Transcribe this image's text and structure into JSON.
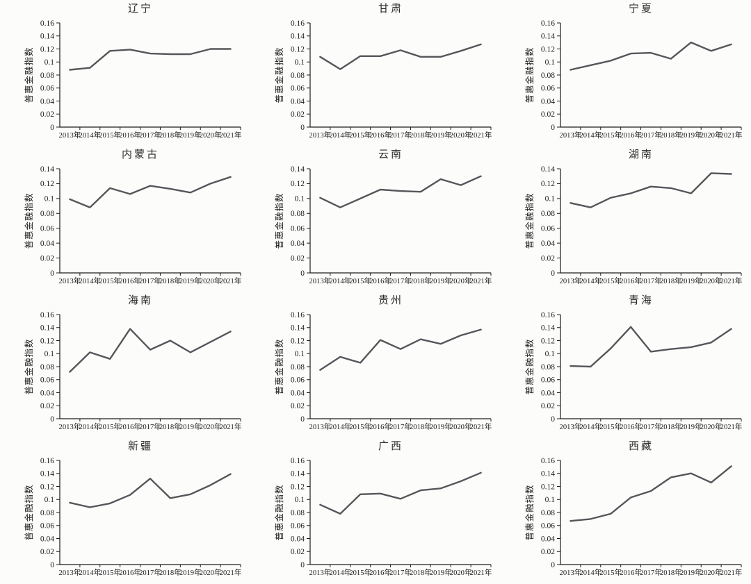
{
  "page": {
    "background": "#fcfcfb",
    "line_color": "#55565a",
    "axis_color": "#1c1c1c"
  },
  "chart_data": [
    {
      "type": "line",
      "title": "辽宁",
      "ylabel": "普惠金融指数",
      "xlabel": "",
      "categories": [
        "2013年",
        "2014年",
        "2015年",
        "2016年",
        "2017年",
        "2018年",
        "2019年",
        "2020年",
        "2021年"
      ],
      "values": [
        0.088,
        0.091,
        0.117,
        0.119,
        0.113,
        0.112,
        0.112,
        0.12,
        0.12
      ],
      "ylim": [
        0,
        0.16
      ],
      "ytick_step": 0.02,
      "yticks": [
        "0",
        "0.02",
        "0.04",
        "0.06",
        "0.08",
        "0.1",
        "0.12",
        "0.14",
        "0.16"
      ],
      "grid": false,
      "legend": null
    },
    {
      "type": "line",
      "title": "甘肃",
      "ylabel": "普惠金融指数",
      "xlabel": "",
      "categories": [
        "2013年",
        "2014年",
        "2015年",
        "2016年",
        "2017年",
        "2018年",
        "2019年",
        "2020年",
        "2021年"
      ],
      "values": [
        0.108,
        0.089,
        0.109,
        0.109,
        0.118,
        0.108,
        0.108,
        0.117,
        0.127
      ],
      "ylim": [
        0,
        0.16
      ],
      "ytick_step": 0.02,
      "yticks": [
        "0",
        "0.02",
        "0.04",
        "0.06",
        "0.08",
        "0.1",
        "0.12",
        "0.14",
        "0.16"
      ],
      "grid": false,
      "legend": null
    },
    {
      "type": "line",
      "title": "宁夏",
      "ylabel": "普惠金融指数",
      "xlabel": "",
      "categories": [
        "2013年",
        "2014年",
        "2015年",
        "2016年",
        "2017年",
        "2018年",
        "2019年",
        "2020年",
        "2021年"
      ],
      "values": [
        0.088,
        0.095,
        0.102,
        0.113,
        0.114,
        0.105,
        0.13,
        0.117,
        0.127
      ],
      "ylim": [
        0,
        0.16
      ],
      "ytick_step": 0.02,
      "yticks": [
        "0",
        "0.02",
        "0.04",
        "0.06",
        "0.08",
        "0.1",
        "0.12",
        "0.14",
        "0.16"
      ],
      "grid": false,
      "legend": null
    },
    {
      "type": "line",
      "title": "内蒙古",
      "ylabel": "普惠金融指数",
      "xlabel": "",
      "categories": [
        "2013年",
        "2014年",
        "2015年",
        "2016年",
        "2017年",
        "2018年",
        "2019年",
        "2020年",
        "2021年"
      ],
      "values": [
        0.099,
        0.088,
        0.114,
        0.106,
        0.117,
        0.113,
        0.108,
        0.12,
        0.129
      ],
      "ylim": [
        0,
        0.14
      ],
      "ytick_step": 0.02,
      "yticks": [
        "0",
        "0.02",
        "0.04",
        "0.06",
        "0.08",
        "0.1",
        "0.12",
        "0.14"
      ],
      "grid": false,
      "legend": null
    },
    {
      "type": "line",
      "title": "云南",
      "ylabel": "普惠金融指数",
      "xlabel": "",
      "categories": [
        "2013年",
        "2014年",
        "2015年",
        "2016年",
        "2017年",
        "2018年",
        "2019年",
        "2020年",
        "2021年"
      ],
      "values": [
        0.101,
        0.088,
        0.1,
        0.112,
        0.11,
        0.109,
        0.126,
        0.118,
        0.13
      ],
      "ylim": [
        0,
        0.14
      ],
      "ytick_step": 0.02,
      "yticks": [
        "0",
        "0.02",
        "0.04",
        "0.06",
        "0.08",
        "0.1",
        "0.12",
        "0.14"
      ],
      "grid": false,
      "legend": null
    },
    {
      "type": "line",
      "title": "湖南",
      "ylabel": "普惠金融指数",
      "xlabel": "",
      "categories": [
        "2013年",
        "2014年",
        "2015年",
        "2016年",
        "2017年",
        "2018年",
        "2019年",
        "2020年",
        "2021年"
      ],
      "values": [
        0.094,
        0.088,
        0.101,
        0.107,
        0.116,
        0.114,
        0.107,
        0.134,
        0.133
      ],
      "ylim": [
        0,
        0.14
      ],
      "ytick_step": 0.02,
      "yticks": [
        "0",
        "0.02",
        "0.04",
        "0.06",
        "0.08",
        "0.1",
        "0.12",
        "0.14"
      ],
      "grid": false,
      "legend": null
    },
    {
      "type": "line",
      "title": "海南",
      "ylabel": "普惠金融指数",
      "xlabel": "",
      "categories": [
        "2013年",
        "2014年",
        "2015年",
        "2016年",
        "2017年",
        "2018年",
        "2019年",
        "2020年",
        "2021年"
      ],
      "values": [
        0.072,
        0.102,
        0.092,
        0.138,
        0.106,
        0.12,
        0.102,
        0.118,
        0.134
      ],
      "ylim": [
        0,
        0.16
      ],
      "ytick_step": 0.02,
      "yticks": [
        "0",
        "0.02",
        "0.04",
        "0.06",
        "0.08",
        "0.1",
        "0.12",
        "0.14",
        "0.16"
      ],
      "grid": false,
      "legend": null
    },
    {
      "type": "line",
      "title": "贵州",
      "ylabel": "普惠金融指数",
      "xlabel": "",
      "categories": [
        "2013年",
        "2014年",
        "2015年",
        "2016年",
        "2017年",
        "2018年",
        "2019年",
        "2020年",
        "2021年"
      ],
      "values": [
        0.075,
        0.095,
        0.086,
        0.121,
        0.107,
        0.122,
        0.115,
        0.128,
        0.137
      ],
      "ylim": [
        0,
        0.16
      ],
      "ytick_step": 0.02,
      "yticks": [
        "0",
        "0.02",
        "0.04",
        "0.06",
        "0.08",
        "0.1",
        "0.12",
        "0.14",
        "0.16"
      ],
      "grid": false,
      "legend": null
    },
    {
      "type": "line",
      "title": "青海",
      "ylabel": "普惠金融指数",
      "xlabel": "",
      "categories": [
        "2013年",
        "2014年",
        "2015年",
        "2016年",
        "2017年",
        "2018年",
        "2019年",
        "2020年",
        "2021年"
      ],
      "values": [
        0.081,
        0.08,
        0.108,
        0.141,
        0.103,
        0.107,
        0.11,
        0.117,
        0.138
      ],
      "ylim": [
        0,
        0.16
      ],
      "ytick_step": 0.02,
      "yticks": [
        "0",
        "0.02",
        "0.04",
        "0.06",
        "0.08",
        "0.1",
        "0.12",
        "0.14",
        "0.16"
      ],
      "grid": false,
      "legend": null
    },
    {
      "type": "line",
      "title": "新疆",
      "ylabel": "普惠金融指数",
      "xlabel": "",
      "categories": [
        "2013年",
        "2014年",
        "2015年",
        "2016年",
        "2017年",
        "2018年",
        "2019年",
        "2020年",
        "2021年"
      ],
      "values": [
        0.095,
        0.088,
        0.094,
        0.107,
        0.132,
        0.102,
        0.108,
        0.122,
        0.139
      ],
      "ylim": [
        0,
        0.16
      ],
      "ytick_step": 0.02,
      "yticks": [
        "0",
        "0.02",
        "0.04",
        "0.06",
        "0.08",
        "0.1",
        "0.12",
        "0.14",
        "0.16"
      ],
      "grid": false,
      "legend": null
    },
    {
      "type": "line",
      "title": "广西",
      "ylabel": "普惠金融指数",
      "xlabel": "",
      "categories": [
        "2013年",
        "2014年",
        "2015年",
        "2016年",
        "2017年",
        "2018年",
        "2019年",
        "2020年",
        "2021年"
      ],
      "values": [
        0.092,
        0.078,
        0.108,
        0.109,
        0.101,
        0.114,
        0.117,
        0.128,
        0.141
      ],
      "ylim": [
        0,
        0.16
      ],
      "ytick_step": 0.02,
      "yticks": [
        "0",
        "0.02",
        "0.04",
        "0.06",
        "0.08",
        "0.1",
        "0.12",
        "0.14",
        "0.16"
      ],
      "grid": false,
      "legend": null
    },
    {
      "type": "line",
      "title": "西藏",
      "ylabel": "普惠金融指数",
      "xlabel": "",
      "categories": [
        "2013年",
        "2014年",
        "2015年",
        "2016年",
        "2017年",
        "2018年",
        "2019年",
        "2020年",
        "2021年"
      ],
      "values": [
        0.067,
        0.07,
        0.078,
        0.103,
        0.113,
        0.134,
        0.14,
        0.126,
        0.151
      ],
      "ylim": [
        0,
        0.16
      ],
      "ytick_step": 0.02,
      "yticks": [
        "0",
        "0.02",
        "0.04",
        "0.06",
        "0.08",
        "0.1",
        "0.12",
        "0.14",
        "0.16"
      ],
      "grid": false,
      "legend": null
    }
  ]
}
